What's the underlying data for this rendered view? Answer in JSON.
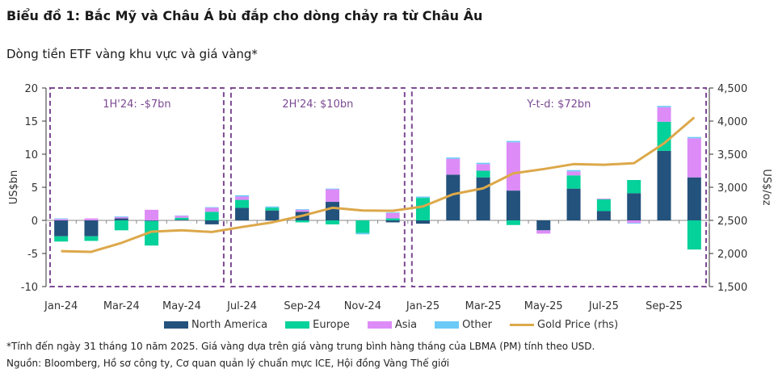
{
  "title": "Biểu đồ 1: Bắc Mỹ và Châu Á bù đắp cho dòng chảy ra từ Châu Âu",
  "subtitle": "Dòng tiền ETF vàng khu vực và giá vàng*",
  "footnote": "*Tính đến ngày 31 tháng 10 năm 2025. Giá vàng dựa trên giá vàng trung bình hàng tháng của LBMA (PM) tính theo USD.",
  "source": "Nguồn: Bloomberg, Hồ sơ công ty, Cơ quan quản lý chuẩn mực ICE, Hội đồng Vàng Thế giới",
  "chart_data": {
    "type": "bar",
    "stacked": true,
    "title": "Dòng tiền ETF vàng khu vực và giá vàng*",
    "xlabel": "",
    "ylabel": "US$bn",
    "y2label": "US$/oz",
    "ylim": [
      -10,
      20
    ],
    "y2lim": [
      1500,
      4500
    ],
    "yticks": [
      "-10",
      "-5",
      "0",
      "5",
      "10",
      "15",
      "20"
    ],
    "y2ticks": [
      "1,500",
      "2,000",
      "2,500",
      "3,000",
      "3,500",
      "4,000",
      "4,500"
    ],
    "categories": [
      "Jan-24",
      "Feb-24",
      "Mar-24",
      "Apr-24",
      "May-24",
      "Jun-24",
      "Jul-24",
      "Aug-24",
      "Sep-24",
      "Oct-24",
      "Nov-24",
      "Dec-24",
      "Jan-25",
      "Feb-25",
      "Mar-25",
      "Apr-25",
      "May-25",
      "Jun-25",
      "Jul-25",
      "Aug-25",
      "Sep-25",
      "Oct-25"
    ],
    "xtick_labels": [
      "Jan-24",
      "Mar-24",
      "May-24",
      "Jul-24",
      "Sep-24",
      "Nov-24",
      "Jan-25",
      "Mar-25",
      "May-25",
      "Jul-25",
      "Sep-25"
    ],
    "series": [
      {
        "name": "North America",
        "color": "#23527c",
        "values": [
          -2.4,
          -2.4,
          0.3,
          -0.1,
          0.1,
          -0.6,
          1.9,
          1.5,
          1.3,
          2.8,
          0,
          -0.3,
          -0.5,
          6.9,
          6.5,
          4.5,
          -1.5,
          4.8,
          1.4,
          4.1,
          10.5,
          6.5
        ]
      },
      {
        "name": "Europe",
        "color": "#05d19a",
        "values": [
          -0.8,
          -0.7,
          -1.5,
          -3.7,
          0.3,
          1.3,
          1.2,
          0.4,
          -0.3,
          -0.6,
          -1.9,
          0.3,
          3.4,
          0,
          1.0,
          -0.7,
          0,
          2.0,
          1.8,
          2.0,
          4.4,
          -4.4
        ]
      },
      {
        "name": "Asia",
        "color": "#dd8cf7",
        "values": [
          0.2,
          0.3,
          0.2,
          1.6,
          0.3,
          0.6,
          0.5,
          0,
          0.3,
          1.9,
          0,
          0.8,
          0,
          2.4,
          1.0,
          7.3,
          -0.5,
          0.6,
          0.1,
          -0.4,
          2.2,
          5.9
        ]
      },
      {
        "name": "Other",
        "color": "#6ccaf7",
        "values": [
          0.1,
          0,
          0.1,
          0,
          0.05,
          0.1,
          0.2,
          0.2,
          0.1,
          0.1,
          -0.2,
          0.1,
          0.2,
          0.2,
          0.2,
          0.2,
          0,
          0.2,
          0,
          -0.1,
          0.2,
          0.2
        ]
      }
    ],
    "line_series": {
      "name": "Gold Price (rhs)",
      "axis": "right",
      "color": "#dca84a",
      "values": [
        2035,
        2025,
        2160,
        2330,
        2350,
        2325,
        2400,
        2470,
        2570,
        2690,
        2650,
        2645,
        2710,
        2895,
        2985,
        3210,
        3275,
        3350,
        3340,
        3365,
        3665,
        4055
      ]
    },
    "annotations": [
      {
        "label": "1H'24: -$7bn",
        "from": "Jan-24",
        "to": "Jun-24"
      },
      {
        "label": "2H'24: $10bn",
        "from": "Jul-24",
        "to": "Dec-24"
      },
      {
        "label": "Y-t-d: $72bn",
        "from": "Jan-25",
        "to": "Oct-25"
      }
    ],
    "annotation_color": "#7b4a93",
    "legend": "bottom",
    "grid": false
  }
}
